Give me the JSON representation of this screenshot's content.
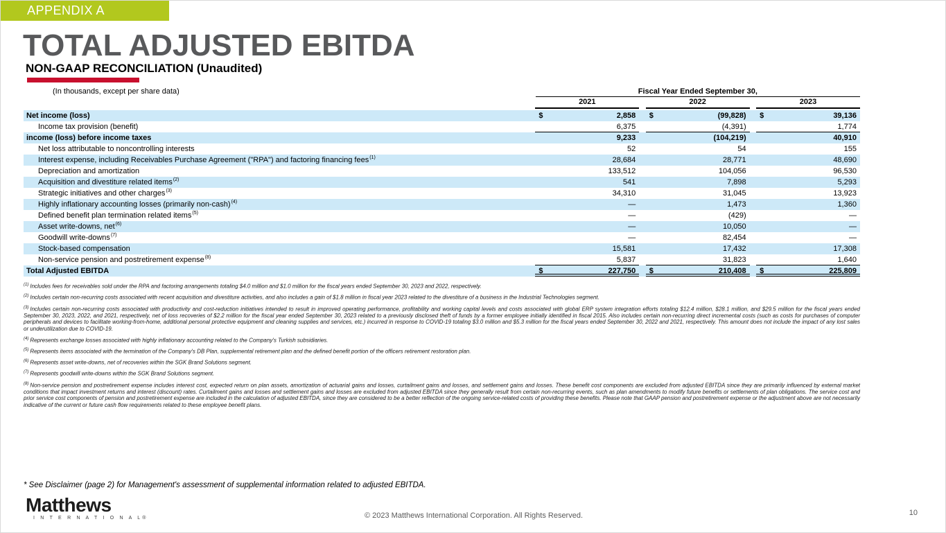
{
  "banner": {
    "label": "APPENDIX A"
  },
  "title": "TOTAL ADJUSTED EBITDA",
  "subtitle": "NON-GAAP RECONCILIATION (Unaudited)",
  "colors": {
    "accent_green": "#b2c81e",
    "accent_red": "#c8102e",
    "row_highlight": "#cde9f8",
    "title_gray": "#58595b"
  },
  "table": {
    "units_note": "(In thousands, except per share data)",
    "header_group": "Fiscal Year Ended September 30,",
    "years": [
      "2021",
      "2022",
      "2023"
    ],
    "rows": [
      {
        "label": "Net income (loss)",
        "sup": "",
        "cur": "$",
        "v1": "2,858",
        "v2": "(99,828)",
        "v3": "39,136"
      },
      {
        "label": "Income tax provision (benefit)",
        "sup": "",
        "cur": "",
        "v1": "6,375",
        "v2": "(4,391)",
        "v3": "1,774"
      },
      {
        "label": "income (loss) before income taxes",
        "sup": "",
        "cur": "",
        "v1": "9,233",
        "v2": "(104,219)",
        "v3": "40,910"
      },
      {
        "label": "Net loss attributable to noncontrolling interests",
        "sup": "",
        "cur": "",
        "v1": "52",
        "v2": "54",
        "v3": "155"
      },
      {
        "label": "Interest expense, including Receivables Purchase Agreement (\"RPA\") and factoring financing fees",
        "sup": "(1)",
        "cur": "",
        "v1": "28,684",
        "v2": "28,771",
        "v3": "48,690"
      },
      {
        "label": "Depreciation and amortization",
        "sup": "",
        "cur": "",
        "v1": "133,512",
        "v2": "104,056",
        "v3": "96,530"
      },
      {
        "label": "Acquisition and divestiture related items",
        "sup": "(2)",
        "cur": "",
        "v1": "541",
        "v2": "7,898",
        "v3": "5,293"
      },
      {
        "label": "Strategic initiatives and other charges",
        "sup": "(3)",
        "cur": "",
        "v1": "34,310",
        "v2": "31,045",
        "v3": "13,923"
      },
      {
        "label": "Highly inflationary accounting losses (primarily non-cash)",
        "sup": "(4)",
        "cur": "",
        "v1": "—",
        "v2": "1,473",
        "v3": "1,360"
      },
      {
        "label": "Defined benefit plan termination related items",
        "sup": "(5)",
        "cur": "",
        "v1": "—",
        "v2": "(429)",
        "v3": "—"
      },
      {
        "label": "Asset write-downs, net",
        "sup": "(6)",
        "cur": "",
        "v1": "—",
        "v2": "10,050",
        "v3": "—"
      },
      {
        "label": "Goodwill write-downs",
        "sup": "(7)",
        "cur": "",
        "v1": "—",
        "v2": "82,454",
        "v3": "—"
      },
      {
        "label": "Stock-based compensation",
        "sup": "",
        "cur": "",
        "v1": "15,581",
        "v2": "17,432",
        "v3": "17,308"
      },
      {
        "label": "Non-service pension and postretirement expense",
        "sup": "(8)",
        "cur": "",
        "v1": "5,837",
        "v2": "31,823",
        "v3": "1,640"
      },
      {
        "label": "Total Adjusted EBITDA",
        "sup": "",
        "cur": "$",
        "v1": "227,750",
        "v2": "210,408",
        "v3": "225,809"
      }
    ]
  },
  "footnotes": [
    {
      "num": "(1)",
      "text": "Includes fees for receivables sold under the RPA and factoring arrangements totaling $4.0 million and $1.0 million for the fiscal years ended September 30, 2023 and 2022, respectively."
    },
    {
      "num": "(2)",
      "text": "Includes certain non-recurring costs associated with recent acquisition and divestiture activities, and also includes a gain of $1.8 million in fiscal year 2023 related to the divestiture of a business in the Industrial Technologies segment."
    },
    {
      "num": "(3)",
      "text": "Includes certain non-recurring costs associated with productivity and cost-reduction initiatives intended to result in improved operating performance, profitability and working capital levels and costs associated with global ERP system integration efforts totaling $12.4 million, $28.1 million, and $29.5 million  for the fiscal years ended September 30, 2023, 2022, and 2021, respectively, net of loss recoveries of $2.2 million for the fiscal year ended September 30, 2023 related to a previously disclosed theft of funds by a former employee initially identified in fiscal 2015.  Also includes certain non-recurring direct incremental costs (such as costs for purchases of computer peripherals and devices to facilitate working-from-home, additional personal protective equipment and cleaning supplies and services, etc.) incurred in response to COVID-19 totaling $3.0 million and $5.3 million for the fiscal years ended September 30, 2022 and 2021, respectively.  This amount does not include the impact of any lost sales or underutilization due to COVID-19."
    },
    {
      "num": "(4)",
      "text": "Represents exchange losses associated with highly inflationary accounting related to the Company's Turkish subsidiaries."
    },
    {
      "num": "(5)",
      "text": "Represents items associated with the termination of the Company's DB Plan, supplemental retirement plan and the defined benefit portion of the officers retirement restoration plan."
    },
    {
      "num": "(6)",
      "text": "Represents asset write-downs, net of recoveries within the SGK Brand Solutions segment."
    },
    {
      "num": "(7)",
      "text": "Represents goodwill write-downs within the SGK Brand Solutions segment."
    },
    {
      "num": "(8)",
      "text": "Non-service pension and postretirement expense includes interest cost, expected return on plan assets, amortization of actuarial gains and losses, curtailment gains and losses, and settlement gains and losses. These benefit cost components are excluded from adjusted EBITDA since they are primarily influenced by external market conditions that impact investment returns and interest (discount) rates. Curtailment gains and losses and settlement gains and losses are excluded from adjusted EBITDA since they generally result from certain non-recurring events, such as plan amendments to modify future benefits or settlements of plan obligations. The service cost and prior service cost components of pension and postretirement expense are included in the calculation of adjusted EBITDA, since they are considered to be a better reflection of the ongoing service-related costs of providing these benefits. Please note that GAAP pension and postretirement expense or the adjustment above are not necessarily indicative of the current or future cash flow requirements related to these employee benefit plans."
    }
  ],
  "disclaimer": "* See Disclaimer (page 2) for Management's assessment of supplemental information related to adjusted EBITDA.",
  "footer": {
    "logo_main": "Matthews",
    "logo_sub": "I N T E R N A T I O N A L®",
    "copyright": "© 2023 Matthews International Corporation. All Rights Reserved.",
    "page_number": "10"
  }
}
